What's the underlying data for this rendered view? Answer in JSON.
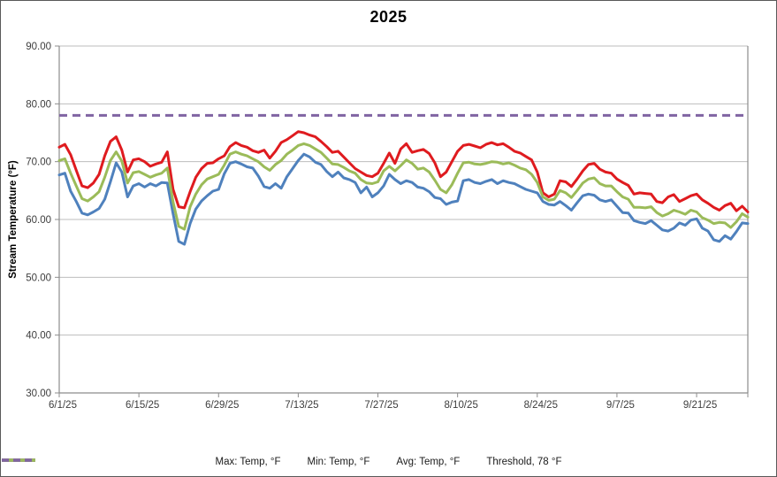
{
  "title": "2025",
  "y_axis_title": "Stream Temperature (°F)",
  "colors": {
    "max_series": "#df1b1f",
    "min_series": "#4f81bd",
    "avg_series": "#9bbb59",
    "threshold": "#8064a2",
    "gridline": "#bdbdbd",
    "axis": "#8c8c8c",
    "tick_text": "#3d3d3d"
  },
  "chart_data": {
    "type": "line",
    "title": "2025",
    "xlabel": "",
    "ylabel": "Stream Temperature (°F)",
    "ylim": [
      30,
      90
    ],
    "ytick_step": 10,
    "y_tick_labels": [
      "30.00",
      "40.00",
      "50.00",
      "60.00",
      "70.00",
      "80.00",
      "90.00"
    ],
    "grid": "horizontal",
    "legend_position": "bottom",
    "x_start_date": "6/1/25",
    "x_end_date": "9/30/25",
    "n_points": 122,
    "x_tick_labels": [
      "6/1/25",
      "6/15/25",
      "6/29/25",
      "7/13/25",
      "7/27/25",
      "8/10/25",
      "8/24/25",
      "9/7/25",
      "9/21/25"
    ],
    "x_tick_positions": [
      0,
      14,
      28,
      42,
      56,
      70,
      84,
      98,
      112
    ],
    "threshold": {
      "label": "Threshold, 78 °F",
      "value": 78,
      "style": "dashed"
    },
    "series": [
      {
        "name": "Max: Temp, °F",
        "color": "#df1b1f",
        "values": [
          72.5,
          73.0,
          71.2,
          68.5,
          65.8,
          65.5,
          66.3,
          67.8,
          71.0,
          73.5,
          74.3,
          72.0,
          68.2,
          70.3,
          70.5,
          70.0,
          69.2,
          69.6,
          69.9,
          71.7,
          65.2,
          62.2,
          62.0,
          64.8,
          67.3,
          68.8,
          69.7,
          69.8,
          70.5,
          71.0,
          72.6,
          73.3,
          72.8,
          72.5,
          71.9,
          71.6,
          72.0,
          70.6,
          71.8,
          73.3,
          73.8,
          74.5,
          75.2,
          75.0,
          74.6,
          74.3,
          73.5,
          72.6,
          71.6,
          71.8,
          70.8,
          69.8,
          68.8,
          68.2,
          67.6,
          67.4,
          68.0,
          69.7,
          71.5,
          69.7,
          72.2,
          73.1,
          71.6,
          71.9,
          72.1,
          71.4,
          69.8,
          67.4,
          68.2,
          70.0,
          71.8,
          72.8,
          73.0,
          72.7,
          72.4,
          73.0,
          73.3,
          72.9,
          73.1,
          72.5,
          71.8,
          71.5,
          70.9,
          70.3,
          68.2,
          64.6,
          63.9,
          64.4,
          66.7,
          66.5,
          65.7,
          67.0,
          68.4,
          69.5,
          69.7,
          68.7,
          68.2,
          68.0,
          67.0,
          66.4,
          65.9,
          64.4,
          64.6,
          64.5,
          64.4,
          63.1,
          62.9,
          63.9,
          64.3,
          63.1,
          63.6,
          64.1,
          64.4,
          63.4,
          62.8,
          62.1,
          61.6,
          62.4,
          62.8,
          61.5,
          62.3,
          61.3
        ]
      },
      {
        "name": "Min: Temp, °F",
        "color": "#4f81bd",
        "values": [
          67.7,
          68.0,
          64.9,
          63.1,
          61.1,
          60.8,
          61.3,
          61.9,
          63.5,
          66.5,
          69.8,
          68.2,
          63.9,
          65.8,
          66.2,
          65.6,
          66.2,
          65.8,
          66.4,
          66.3,
          61.0,
          56.2,
          55.7,
          59.3,
          61.8,
          63.2,
          64.1,
          64.9,
          65.2,
          67.9,
          69.7,
          70.0,
          69.6,
          69.1,
          68.9,
          67.5,
          65.7,
          65.4,
          66.2,
          65.4,
          67.4,
          68.8,
          70.2,
          71.3,
          70.8,
          69.9,
          69.5,
          68.3,
          67.4,
          68.2,
          67.2,
          66.9,
          66.4,
          64.6,
          65.6,
          63.9,
          64.6,
          65.8,
          67.8,
          66.9,
          66.2,
          66.7,
          66.4,
          65.6,
          65.4,
          64.8,
          63.8,
          63.6,
          62.6,
          63.0,
          63.2,
          66.7,
          66.9,
          66.4,
          66.2,
          66.6,
          66.9,
          66.2,
          66.7,
          66.4,
          66.2,
          65.7,
          65.2,
          64.9,
          64.6,
          63.1,
          62.6,
          62.5,
          63.1,
          62.4,
          61.6,
          62.9,
          64.1,
          64.4,
          64.2,
          63.4,
          63.1,
          63.4,
          62.3,
          61.2,
          61.1,
          59.8,
          59.5,
          59.3,
          59.8,
          59.0,
          58.2,
          58.0,
          58.5,
          59.4,
          59.0,
          59.9,
          60.1,
          58.5,
          58.0,
          56.5,
          56.2,
          57.2,
          56.6,
          57.9,
          59.4,
          59.3
        ]
      },
      {
        "name": "Avg: Temp, °F",
        "color": "#9bbb59",
        "values": [
          70.2,
          70.5,
          68.0,
          65.8,
          63.6,
          63.2,
          63.9,
          64.8,
          67.3,
          70.2,
          71.7,
          70.1,
          66.3,
          68.1,
          68.3,
          67.8,
          67.3,
          67.7,
          68.0,
          68.9,
          63.0,
          58.8,
          58.3,
          62.2,
          64.4,
          66.0,
          67.0,
          67.4,
          67.8,
          69.4,
          71.3,
          71.7,
          71.3,
          71.0,
          70.5,
          70.0,
          69.1,
          68.5,
          69.5,
          70.2,
          71.3,
          72.0,
          72.8,
          73.1,
          72.8,
          72.2,
          71.6,
          70.6,
          69.6,
          69.5,
          69.0,
          68.4,
          68.0,
          66.9,
          66.3,
          66.2,
          66.5,
          68.4,
          69.2,
          68.4,
          69.3,
          70.3,
          69.7,
          68.7,
          68.9,
          68.2,
          66.8,
          65.2,
          64.6,
          66.0,
          68.0,
          69.8,
          69.9,
          69.6,
          69.5,
          69.7,
          70.0,
          69.9,
          69.6,
          69.8,
          69.4,
          68.9,
          68.6,
          67.8,
          66.4,
          63.9,
          63.3,
          63.5,
          65.0,
          64.6,
          63.8,
          65.0,
          66.3,
          67.0,
          67.2,
          66.2,
          65.8,
          65.8,
          64.8,
          63.9,
          63.5,
          62.1,
          62.1,
          62.0,
          62.2,
          61.2,
          60.6,
          61.0,
          61.6,
          61.3,
          60.9,
          61.6,
          61.3,
          60.3,
          59.9,
          59.3,
          59.5,
          59.4,
          58.6,
          59.6,
          61.0,
          60.4
        ]
      }
    ]
  }
}
